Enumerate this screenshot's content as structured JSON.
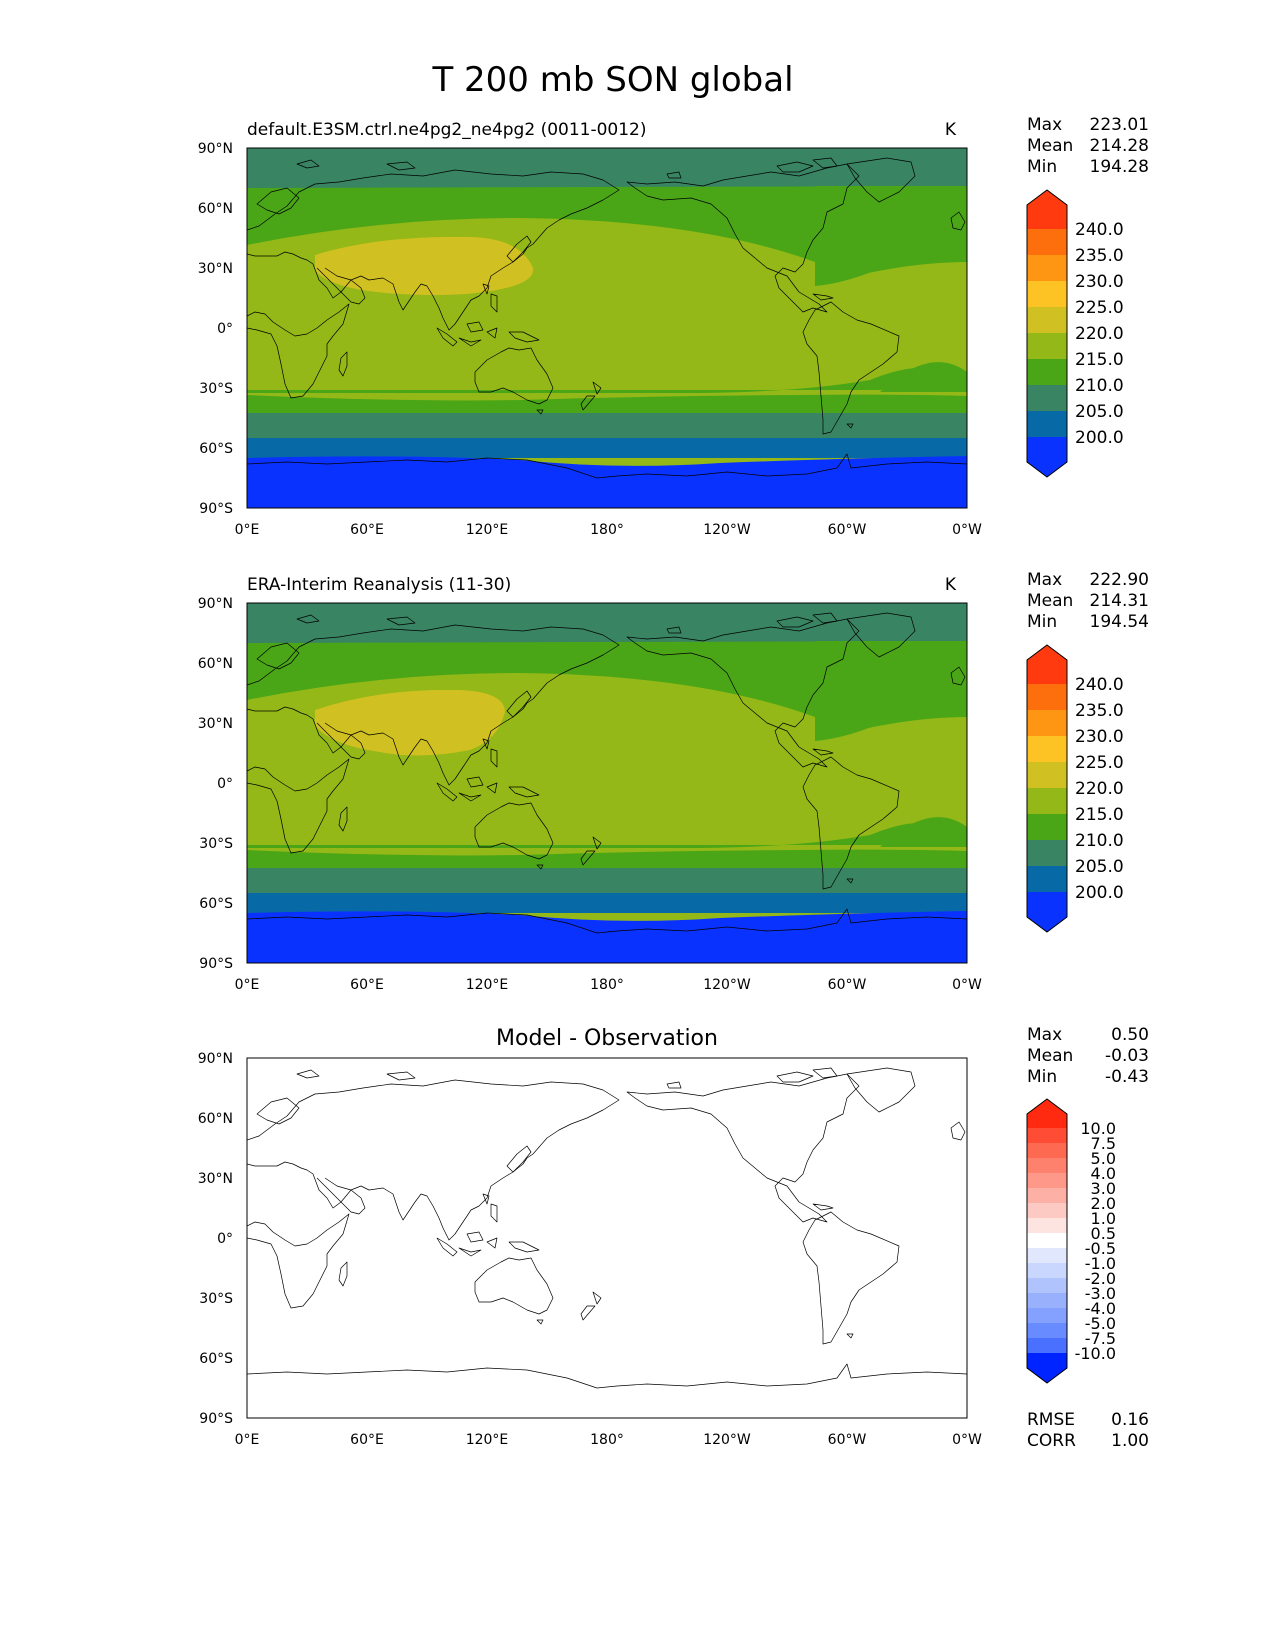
{
  "figure_title": "T 200 mb SON global",
  "axes": {
    "y_ticks": [
      "90°N",
      "60°N",
      "30°N",
      "0°",
      "30°S",
      "60°S",
      "90°S"
    ],
    "x_ticks": [
      "0°E",
      "60°E",
      "120°E",
      "180°",
      "120°W",
      "60°W",
      "0°W"
    ]
  },
  "colors": {
    "temperature_levels": [
      "#0a32ff",
      "#076aa6",
      "#388463",
      "#4aa617",
      "#93b817",
      "#d1c021",
      "#fdc224",
      "#fe9614",
      "#fd6e0c",
      "#fe3a0e"
    ],
    "difference_levels": [
      "#0024ff",
      "#2254ff",
      "#4a70ff",
      "#688bff",
      "#84a1ff",
      "#99b0fd",
      "#b1c3fd",
      "#c9d6fe",
      "#e1e8fe",
      "#ffffff",
      "#fde4e1",
      "#fdcac3",
      "#fdb1a6",
      "#fe9989",
      "#fe816d",
      "#fe6952",
      "#ff4c35",
      "#ff2a10"
    ],
    "coastline": "#000000"
  },
  "chart_data": [
    {
      "type": "heatmap",
      "title": "default.E3SM.ctrl.ne4pg2_ne4pg2 (0011-0012)",
      "units": "K",
      "xlabel": "",
      "ylabel": "",
      "xlim": [
        0,
        360
      ],
      "ylim": [
        -90,
        90
      ],
      "stats": [
        {
          "label": "Max",
          "value": "223.01"
        },
        {
          "label": "Mean",
          "value": "214.28"
        },
        {
          "label": "Min",
          "value": "194.28"
        }
      ],
      "colorbar_levels": [
        200,
        205,
        210,
        215,
        220,
        225,
        230,
        235,
        240
      ],
      "colorbar_labels": [
        "240.0",
        "235.0",
        "230.0",
        "225.0",
        "220.0",
        "215.0",
        "210.0",
        "205.0",
        "200.0"
      ],
      "zonal_bands": [
        {
          "lat_range": [
            -90,
            -65
          ],
          "value": 197.5
        },
        {
          "lat_range": [
            -65,
            -53
          ],
          "value": 202.5
        },
        {
          "lat_range": [
            -53,
            -43
          ],
          "value": 207.5
        },
        {
          "lat_range": [
            -43,
            -33
          ],
          "value": 212.5
        },
        {
          "lat_range": [
            -33,
            55
          ],
          "value": 217.5
        },
        {
          "lat_range": [
            55,
            72
          ],
          "value": 212.5
        },
        {
          "lat_range": [
            72,
            90
          ],
          "value": 207.5
        }
      ],
      "features": [
        {
          "name": "Tibetan-Asian warm maximum",
          "lon_range": [
            35,
            145
          ],
          "lat_range": [
            13,
            45
          ],
          "value": 222.5
        },
        {
          "name": "North American cool patch",
          "lon_range": [
            280,
            360
          ],
          "lat_range": [
            25,
            60
          ],
          "value": 212.5
        },
        {
          "name": "South Atlantic cool patch",
          "lon_range": [
            300,
            360
          ],
          "lat_range": [
            -35,
            -5
          ],
          "value": 212.5
        }
      ]
    },
    {
      "type": "heatmap",
      "title": "ERA-Interim Reanalysis (11-30)",
      "units": "K",
      "xlabel": "",
      "ylabel": "",
      "xlim": [
        0,
        360
      ],
      "ylim": [
        -90,
        90
      ],
      "stats": [
        {
          "label": "Max",
          "value": "222.90"
        },
        {
          "label": "Mean",
          "value": "214.31"
        },
        {
          "label": "Min",
          "value": "194.54"
        }
      ],
      "colorbar_levels": [
        200,
        205,
        210,
        215,
        220,
        225,
        230,
        235,
        240
      ],
      "colorbar_labels": [
        "240.0",
        "235.0",
        "230.0",
        "225.0",
        "220.0",
        "215.0",
        "210.0",
        "205.0",
        "200.0"
      ],
      "zonal_bands": [
        {
          "lat_range": [
            -90,
            -65
          ],
          "value": 197.5
        },
        {
          "lat_range": [
            -65,
            -53
          ],
          "value": 202.5
        },
        {
          "lat_range": [
            -53,
            -43
          ],
          "value": 207.5
        },
        {
          "lat_range": [
            -43,
            -33
          ],
          "value": 212.5
        },
        {
          "lat_range": [
            -33,
            55
          ],
          "value": 217.5
        },
        {
          "lat_range": [
            55,
            72
          ],
          "value": 212.5
        },
        {
          "lat_range": [
            72,
            90
          ],
          "value": 207.5
        }
      ],
      "features": [
        {
          "name": "Tibetan-Asian warm maximum",
          "lon_range": [
            35,
            130
          ],
          "lat_range": [
            12,
            47
          ],
          "value": 222.5
        },
        {
          "name": "North American cool patch",
          "lon_range": [
            280,
            360
          ],
          "lat_range": [
            25,
            60
          ],
          "value": 212.5
        },
        {
          "name": "South Atlantic cool patch",
          "lon_range": [
            300,
            360
          ],
          "lat_range": [
            -35,
            -5
          ],
          "value": 212.5
        }
      ]
    },
    {
      "type": "heatmap",
      "title": "Model - Observation",
      "units": "",
      "xlabel": "",
      "ylabel": "",
      "xlim": [
        0,
        360
      ],
      "ylim": [
        -90,
        90
      ],
      "stats": [
        {
          "label": "Max",
          "value": "0.50"
        },
        {
          "label": "Mean",
          "value": "-0.03"
        },
        {
          "label": "Min",
          "value": "-0.43"
        }
      ],
      "colorbar_levels": [
        -10,
        -7.5,
        -5,
        -4,
        -3,
        -2,
        -1,
        -0.5,
        0.5,
        1,
        2,
        3,
        4,
        5,
        7.5,
        10
      ],
      "colorbar_labels": [
        "10.0",
        "7.5",
        "5.0",
        "4.0",
        "3.0",
        "2.0",
        "1.0",
        "0.5",
        "-0.5",
        "-1.0",
        "-2.0",
        "-3.0",
        "-4.0",
        "-5.0",
        "-7.5",
        "-10.0"
      ],
      "zonal_bands": [
        {
          "lat_range": [
            -90,
            90
          ],
          "value": 0
        }
      ],
      "features": [],
      "footer_stats": [
        {
          "label": "RMSE",
          "value": "0.16"
        },
        {
          "label": "CORR",
          "value": "1.00"
        }
      ]
    }
  ]
}
